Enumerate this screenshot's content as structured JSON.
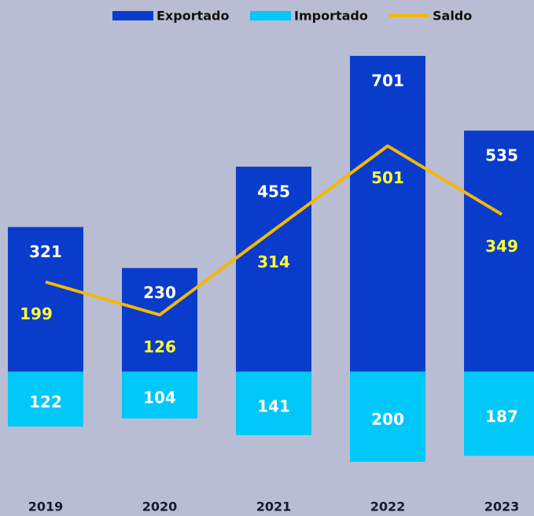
{
  "chart_data": {
    "type": "bar",
    "categories": [
      "2019",
      "2020",
      "2021",
      "2022",
      "2023"
    ],
    "series": [
      {
        "name": "Exportado",
        "color": "#0a3ccc",
        "values": [
          321,
          230,
          455,
          701,
          535
        ]
      },
      {
        "name": "Importado",
        "color": "#00c8f8",
        "values": [
          122,
          104,
          141,
          200,
          187
        ]
      },
      {
        "name": "Saldo",
        "color": "#f5b800",
        "type": "line",
        "values": [
          199,
          126,
          314,
          501,
          349
        ]
      }
    ]
  }
}
